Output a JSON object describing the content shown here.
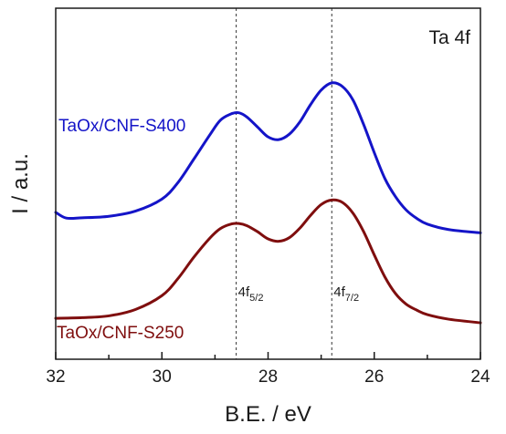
{
  "chart_data": {
    "type": "line",
    "title": "Ta 4f",
    "xlabel": "B.E. / eV",
    "ylabel": "I / a.u.",
    "xlim": [
      32,
      24
    ],
    "x_reversed": true,
    "ylim": [
      0,
      1
    ],
    "y_ticks_shown": false,
    "grid": false,
    "xticks": [
      32,
      30,
      28,
      26,
      24
    ],
    "xtick_labels": [
      "32",
      "30",
      "28",
      "26",
      "24"
    ],
    "reference_lines": [
      {
        "x": 28.6,
        "style": "dashed",
        "label_main": "4f",
        "label_sub": "5/2"
      },
      {
        "x": 26.8,
        "style": "dashed",
        "label_main": "4f",
        "label_sub": "7/2"
      }
    ],
    "series": [
      {
        "name": "TaOx/CNF-S400",
        "color": "#1414c8",
        "x": [
          32.0,
          31.8,
          31.5,
          31.0,
          30.5,
          30.0,
          29.7,
          29.4,
          29.1,
          28.9,
          28.7,
          28.55,
          28.4,
          28.2,
          28.0,
          27.8,
          27.6,
          27.4,
          27.2,
          27.0,
          26.8,
          26.6,
          26.4,
          26.2,
          26.0,
          25.8,
          25.6,
          25.4,
          25.2,
          25.0,
          24.6,
          24.0
        ],
        "values": [
          0.384,
          0.365,
          0.366,
          0.371,
          0.388,
          0.428,
          0.482,
          0.56,
          0.64,
          0.689,
          0.71,
          0.714,
          0.7,
          0.667,
          0.634,
          0.625,
          0.643,
          0.684,
          0.741,
          0.789,
          0.813,
          0.801,
          0.756,
          0.675,
          0.582,
          0.496,
          0.436,
          0.392,
          0.364,
          0.345,
          0.327,
          0.316
        ]
      },
      {
        "name": "TaOx/CNF-S250",
        "color": "#7f0e0e",
        "x": [
          32.0,
          31.5,
          31.0,
          30.5,
          30.0,
          29.7,
          29.4,
          29.1,
          28.9,
          28.7,
          28.55,
          28.4,
          28.2,
          28.0,
          27.8,
          27.6,
          27.4,
          27.2,
          27.0,
          26.8,
          26.6,
          26.4,
          26.2,
          26.0,
          25.8,
          25.6,
          25.4,
          25.2,
          25.0,
          24.6,
          24.0
        ],
        "values": [
          0.033,
          0.035,
          0.041,
          0.062,
          0.108,
          0.164,
          0.235,
          0.298,
          0.33,
          0.345,
          0.347,
          0.34,
          0.32,
          0.296,
          0.288,
          0.3,
          0.332,
          0.374,
          0.41,
          0.425,
          0.417,
          0.381,
          0.32,
          0.243,
          0.17,
          0.115,
          0.08,
          0.06,
          0.045,
          0.03,
          0.018
        ]
      }
    ]
  }
}
